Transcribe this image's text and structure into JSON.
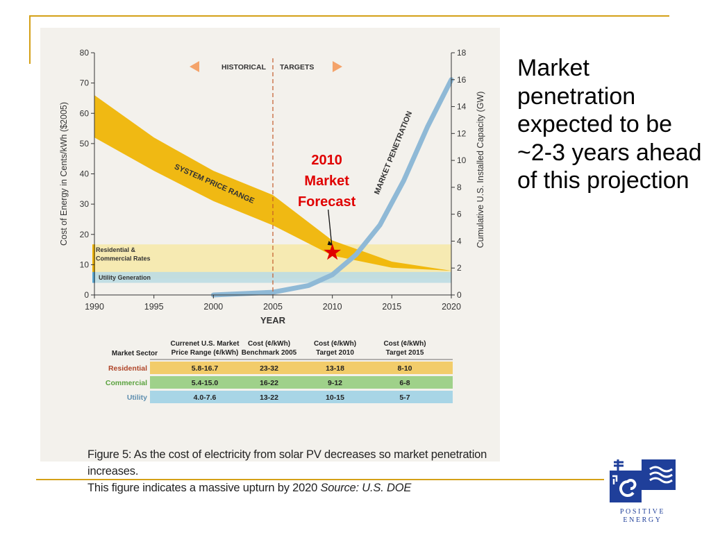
{
  "chart_data": {
    "type": "area",
    "xlabel": "YEAR",
    "ylabel": "Cost of Energy in Cents/kWh ($2005)",
    "y2label": "Cumulative U.S. Installed Capacity (GW)",
    "xlim": [
      1990,
      2020
    ],
    "ylim": [
      0,
      80
    ],
    "y2lim": [
      0,
      18
    ],
    "x_ticks": [
      1990,
      1995,
      2000,
      2005,
      2010,
      2015,
      2020
    ],
    "y_ticks": [
      0,
      10,
      20,
      30,
      40,
      50,
      60,
      70,
      80
    ],
    "y2_ticks": [
      0,
      2,
      4,
      6,
      8,
      10,
      12,
      14,
      16,
      18
    ],
    "series": [
      {
        "name": "SYSTEM PRICE RANGE",
        "kind": "band",
        "color": "#f0b400",
        "x": [
          1990,
          1995,
          2000,
          2005,
          2010,
          2015,
          2020
        ],
        "upper": [
          66,
          52,
          41,
          33,
          18,
          11,
          8
        ],
        "lower": [
          52,
          41,
          31,
          23,
          13,
          9,
          8
        ]
      },
      {
        "name": "MARKET PENETRATION",
        "kind": "line",
        "axis": "y2",
        "color": "#8fb9d6",
        "x": [
          2000,
          2005,
          2008,
          2010,
          2012,
          2014,
          2016,
          2018,
          2020
        ],
        "values": [
          0,
          0.2,
          0.7,
          1.5,
          3,
          5.2,
          8.5,
          12.5,
          16
        ]
      }
    ],
    "reference_bands": [
      {
        "label": "Residential & Commercial Rates",
        "y_from": 5.4,
        "y_to": 16.7,
        "color": "#f6e9a8"
      },
      {
        "label": "Utility Generation",
        "y_from": 4.0,
        "y_to": 7.6,
        "color": "#bddbe3"
      }
    ],
    "annotations": {
      "historical": "HISTORICAL",
      "targets": "TARGETS",
      "divider_year": 2005,
      "forecast_marker": {
        "text_lines": [
          "2010",
          "Market",
          "Forecast"
        ],
        "x": 2010,
        "y": 14
      }
    },
    "table": {
      "headers": [
        [
          "Market Sector"
        ],
        [
          "Currenet U.S. Market",
          "Price Range (¢/kWh)"
        ],
        [
          "Cost (¢/kWh)",
          "Benchmark 2005"
        ],
        [
          "Cost (¢/kWh)",
          "Target 2010"
        ],
        [
          "Cost (¢/kWh)",
          "Target 2015"
        ]
      ],
      "rows": [
        {
          "sector": "Residential",
          "cells": [
            "5.8-16.7",
            "23-32",
            "13-18",
            "8-10"
          ],
          "bg": "#f2cc6a",
          "label_color": "#b0462a"
        },
        {
          "sector": "Commercial",
          "cells": [
            "5.4-15.0",
            "16-22",
            "9-12",
            "6-8"
          ],
          "bg": "#9fd18a",
          "label_color": "#5aa23e"
        },
        {
          "sector": "Utility",
          "cells": [
            "4.0-7.6",
            "13-22",
            "10-15",
            "5-7"
          ],
          "bg": "#a8d5e6",
          "label_color": "#5f8fb0"
        }
      ]
    }
  },
  "caption": {
    "line1": "Figure 5: As the cost of electricity from solar PV decreases so market penetration increases.",
    "line2_a": "This figure indicates a massive upturn by 2020 ",
    "line2_source": "Source: U.S. DOE"
  },
  "side_text": "Market penetration expected to be ~2-3 years ahead of this projection",
  "logo": {
    "line1": "POSITIVE",
    "line2": "ENERGY",
    "color": "#1f3f9a"
  },
  "accent_color": "#d4a017"
}
